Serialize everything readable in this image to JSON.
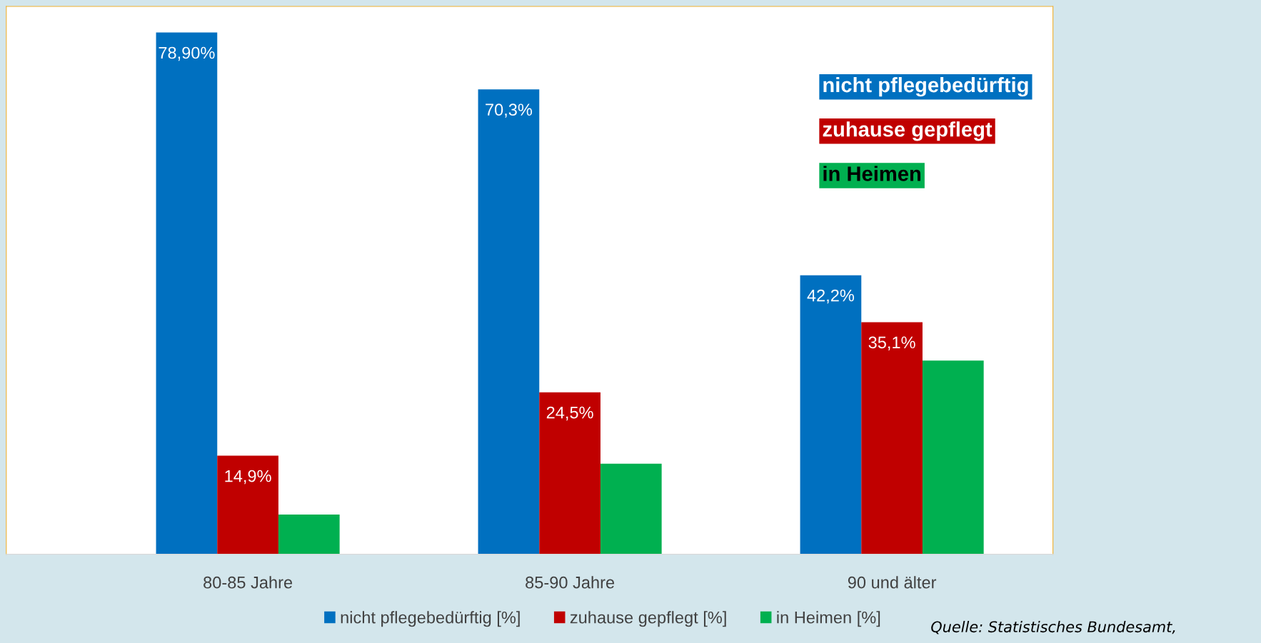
{
  "chart_data": {
    "type": "bar",
    "categories": [
      "80-85 Jahre",
      "85-90 Jahre",
      "90 und älter"
    ],
    "series": [
      {
        "name": "nicht pflegebedürftig [%]",
        "color": "#0070c0",
        "values": [
          78.9,
          70.3,
          42.2
        ],
        "value_labels": [
          "78,90%",
          "70,3%",
          "42,2%"
        ]
      },
      {
        "name": "zuhause gepflegt [%]",
        "color": "#c00000",
        "values": [
          14.9,
          24.5,
          35.1
        ],
        "value_labels": [
          "14,9%",
          "24,5%",
          "35,1%"
        ]
      },
      {
        "name": "in Heimen [%]",
        "color": "#00b050",
        "values": [
          6.0,
          13.7,
          29.3
        ],
        "value_labels": [
          null,
          null,
          null
        ]
      }
    ],
    "legend": "bottom",
    "grid": false,
    "annotations": [
      "nicht pflegebedürftig",
      "zuhause gepflegt",
      "in Heimen",
      "Quelle: Statistisches Bundesamt,"
    ]
  }
}
